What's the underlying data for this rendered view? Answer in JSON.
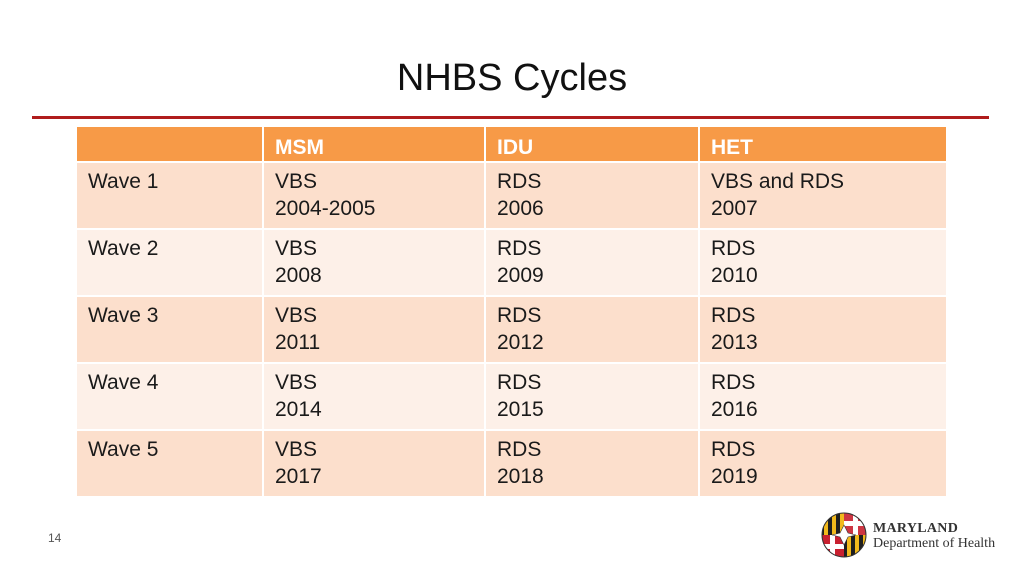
{
  "title": "NHBS Cycles",
  "table": {
    "headers": [
      "",
      "MSM",
      "IDU",
      "HET"
    ],
    "rows": [
      {
        "wave": "Wave 1",
        "cells": [
          [
            "VBS",
            "2004-2005"
          ],
          [
            "RDS",
            "2006"
          ],
          [
            "VBS and RDS",
            "2007"
          ]
        ]
      },
      {
        "wave": "Wave 2",
        "cells": [
          [
            "VBS",
            "2008"
          ],
          [
            "RDS",
            "2009"
          ],
          [
            "RDS",
            "2010"
          ]
        ]
      },
      {
        "wave": "Wave 3",
        "cells": [
          [
            "VBS",
            "2011"
          ],
          [
            "RDS",
            "2012"
          ],
          [
            "RDS",
            "2013"
          ]
        ]
      },
      {
        "wave": "Wave 4",
        "cells": [
          [
            "VBS",
            "2014"
          ],
          [
            "RDS",
            "2015"
          ],
          [
            "RDS",
            "2016"
          ]
        ]
      },
      {
        "wave": "Wave 5",
        "cells": [
          [
            "VBS",
            "2017"
          ],
          [
            "RDS",
            "2018"
          ],
          [
            "RDS",
            "2019"
          ]
        ]
      }
    ]
  },
  "footer": {
    "page_number": "14",
    "logo": {
      "name": "MARYLAND",
      "department": "Department of Health"
    }
  },
  "colors": {
    "accent_rule": "#b01c1c",
    "header_fill": "#f79a47",
    "row_fill_dark": "#fcdfcc",
    "row_fill_light": "#fdf0e8"
  }
}
